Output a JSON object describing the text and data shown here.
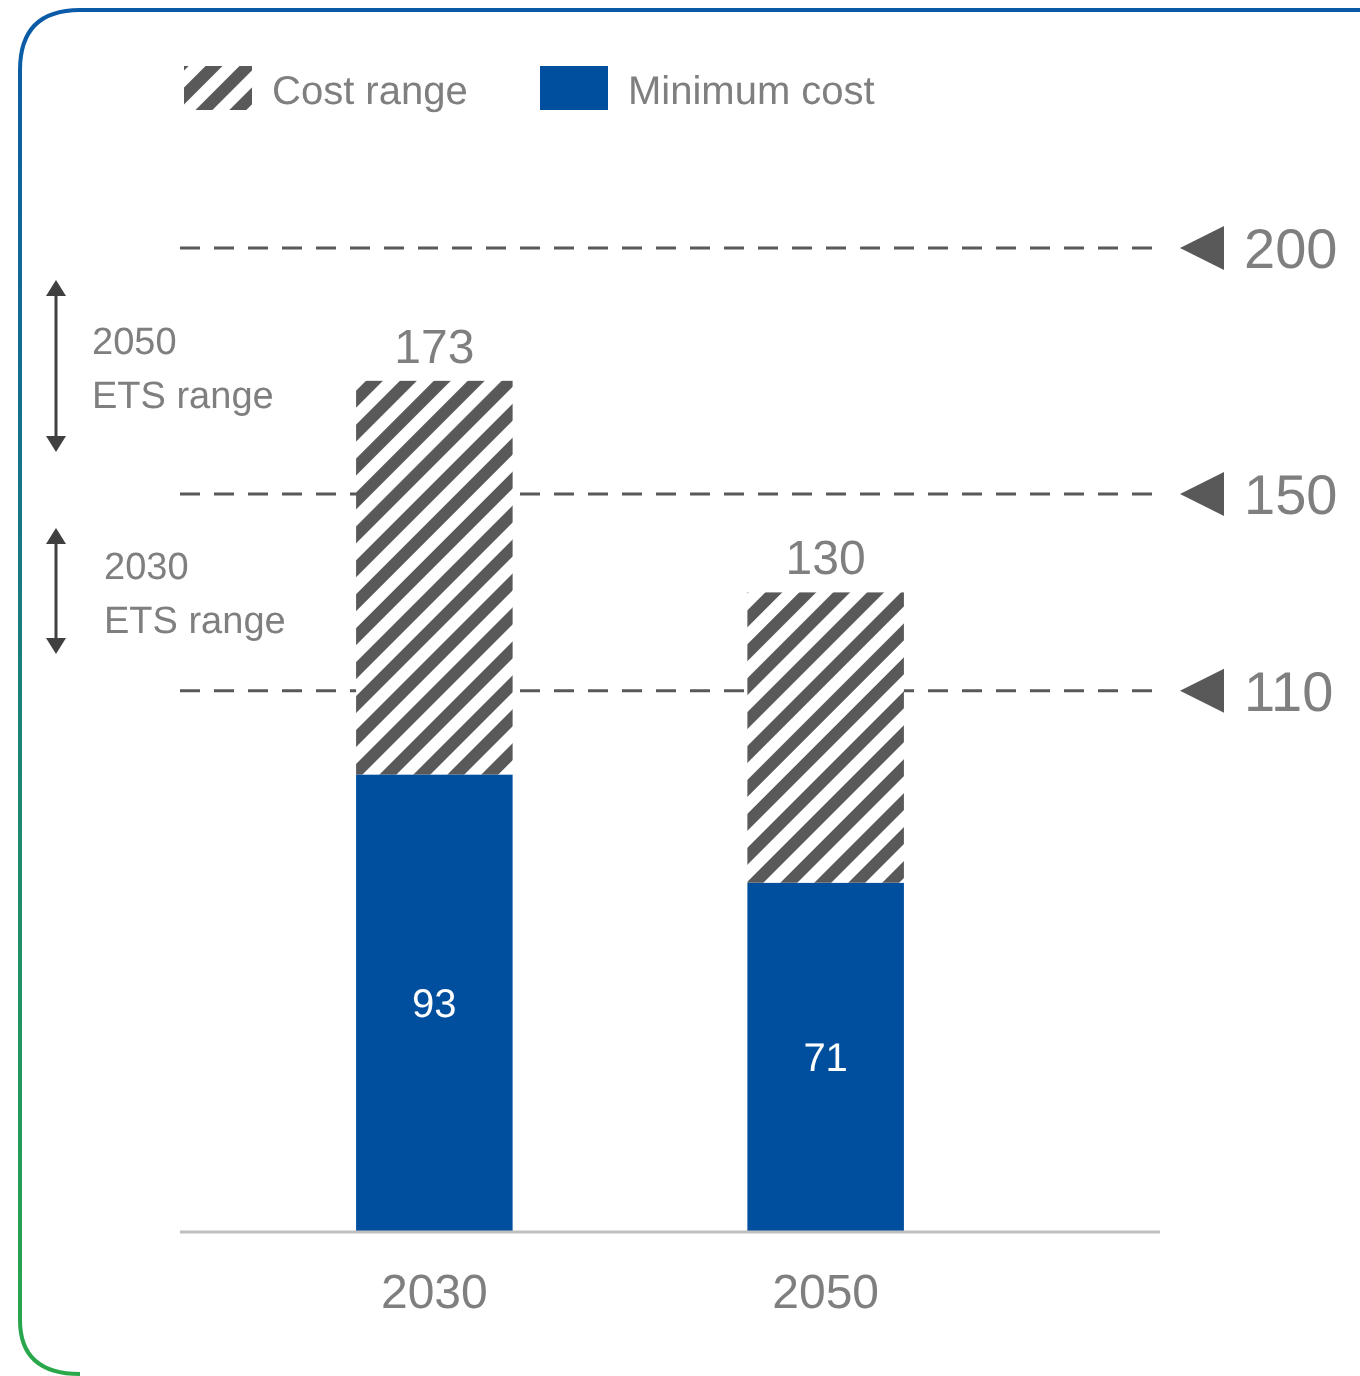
{
  "chart_data": {
    "type": "bar",
    "stacked": true,
    "categories": [
      "2030",
      "2050"
    ],
    "series": [
      {
        "name": "Minimum cost",
        "color": "#004f9f",
        "values": [
          93,
          71
        ],
        "value_labels": [
          "93",
          "71"
        ]
      },
      {
        "name": "Cost range",
        "color": "#595959",
        "values": [
          80,
          59
        ],
        "value_labels": [
          null,
          null
        ]
      }
    ],
    "totals": [
      "173",
      "130"
    ],
    "ylim": [
      0,
      200
    ],
    "tick_labels": "x",
    "legend": "top",
    "annotations": [
      "2050 ETS range",
      "2030 ETS range"
    ],
    "ref_lines": [
      {
        "axis": "y",
        "value": 200,
        "label": "200",
        "line_style": "dashed"
      },
      {
        "axis": "y",
        "value": 150,
        "label": "150",
        "line_style": "dashed"
      },
      {
        "axis": "y",
        "value": 110,
        "label": "110",
        "line_style": "dashed"
      }
    ]
  }
}
